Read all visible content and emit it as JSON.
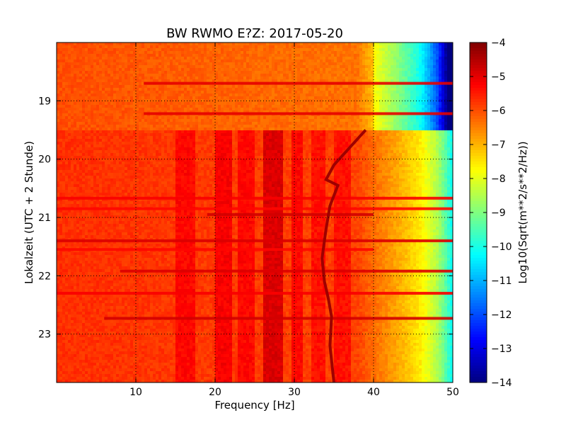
{
  "chart_data": {
    "type": "heatmap",
    "title": "BW RWMO E?Z: 2017-05-20",
    "xlabel": "Frequency [Hz]",
    "ylabel": "Lokalzeit (UTC + 2 Stunde)",
    "xlim": [
      0,
      50
    ],
    "ylim_hours": [
      18.0,
      23.83
    ],
    "y_inverted": true,
    "x_ticks": [
      10,
      20,
      30,
      40,
      50
    ],
    "y_ticks": [
      19,
      20,
      21,
      22,
      23
    ],
    "grid": true,
    "colorbar": {
      "label": "Log10(Sqrt(m**2/s**2/Hz))",
      "range": [
        -14,
        -4
      ],
      "ticks": [
        -4,
        -5,
        -6,
        -7,
        -8,
        -9,
        -10,
        -11,
        -12,
        -13,
        -14
      ],
      "colormap": "jet"
    },
    "background_level": -5.7,
    "frequency_rolloff": [
      {
        "freq": 0,
        "value": -5.7
      },
      {
        "freq": 38,
        "value": -5.9
      },
      {
        "freq": 40,
        "value": -6.3
      },
      {
        "freq": 42,
        "value": -6.7
      },
      {
        "freq": 44,
        "value": -7.1
      },
      {
        "freq": 46,
        "value": -7.6
      },
      {
        "freq": 48,
        "value": -8.5
      },
      {
        "freq": 49,
        "value": -9.3
      },
      {
        "freq": 50,
        "value": -10.2
      }
    ],
    "upper_block": {
      "hours": [
        18.0,
        19.5
      ],
      "value": -6.0,
      "rolloff_shift": -0.6
    },
    "vertical_bands": [
      {
        "f1": 15.0,
        "f2": 17.5,
        "value": -5.3
      },
      {
        "f1": 20.0,
        "f2": 22.0,
        "value": -5.2
      },
      {
        "f1": 23.0,
        "f2": 25.0,
        "value": -5.3
      },
      {
        "f1": 26.0,
        "f2": 28.5,
        "value": -4.9
      },
      {
        "f1": 29.5,
        "f2": 31.0,
        "value": -5.3
      },
      {
        "f1": 32.0,
        "f2": 34.0,
        "value": -5.4
      },
      {
        "f1": 35.0,
        "f2": 37.0,
        "value": -5.4
      }
    ],
    "horizontal_lines": [
      {
        "hour": 18.7,
        "value": -5.0,
        "f1": 11,
        "f2": 50
      },
      {
        "hour": 19.22,
        "value": -5.0,
        "f1": 11,
        "f2": 50
      },
      {
        "hour": 20.67,
        "value": -5.2,
        "f1": 0,
        "f2": 50
      },
      {
        "hour": 20.85,
        "value": -5.3,
        "f1": 0,
        "f2": 50
      },
      {
        "hour": 20.95,
        "value": -4.8,
        "f1": 19,
        "f2": 40
      },
      {
        "hour": 21.4,
        "value": -4.9,
        "f1": 0,
        "f2": 50
      },
      {
        "hour": 21.55,
        "value": -5.3,
        "f1": 0,
        "f2": 40
      },
      {
        "hour": 21.92,
        "value": -4.9,
        "f1": 8,
        "f2": 50
      },
      {
        "hour": 22.3,
        "value": -5.2,
        "f1": 0,
        "f2": 50
      },
      {
        "hour": 22.73,
        "value": -4.8,
        "f1": 6,
        "f2": 50
      }
    ],
    "drifting_line": [
      {
        "hour": 19.5,
        "freq": 39.0
      },
      {
        "hour": 19.8,
        "freq": 37.0
      },
      {
        "hour": 20.1,
        "freq": 35.0
      },
      {
        "hour": 20.35,
        "freq": 34.0
      },
      {
        "hour": 20.45,
        "freq": 35.5
      },
      {
        "hour": 20.8,
        "freq": 34.5
      },
      {
        "hour": 21.2,
        "freq": 34.0
      },
      {
        "hour": 21.7,
        "freq": 33.5
      },
      {
        "hour": 22.1,
        "freq": 33.8
      },
      {
        "hour": 22.4,
        "freq": 34.3
      },
      {
        "hour": 22.7,
        "freq": 34.7
      },
      {
        "hour": 23.2,
        "freq": 34.5
      },
      {
        "hour": 23.83,
        "freq": 35.0
      }
    ],
    "drifting_line_value": -4.3
  }
}
